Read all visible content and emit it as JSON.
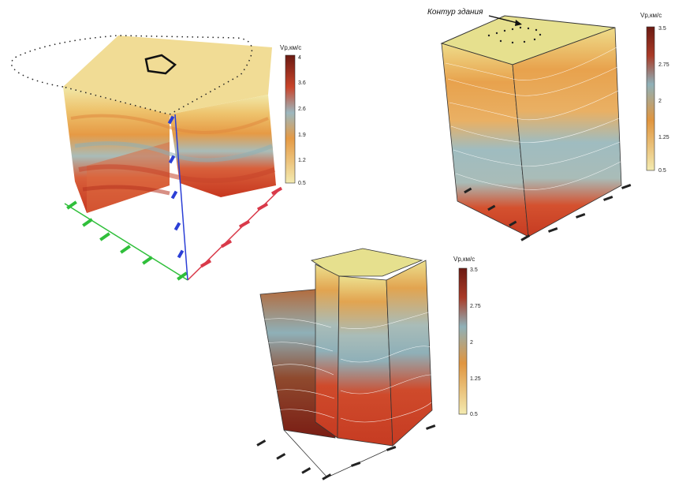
{
  "figure": {
    "panels": [
      {
        "id": "A",
        "colorbar": {
          "title": "Vp,км/с",
          "ticks": [
            "4",
            "3.6",
            "2.6",
            "1.9",
            "1.2",
            "0.5"
          ]
        }
      },
      {
        "id": "B",
        "annotation": "Контур здания",
        "colorbar": {
          "title": "Vp,км/с",
          "ticks": [
            "3.5",
            "2.75",
            "2",
            "1.25",
            "0.5"
          ]
        }
      },
      {
        "id": "C",
        "colorbar": {
          "title": "Vp,км/с",
          "ticks": [
            "3.5",
            "2.75",
            "2",
            "1.25",
            "0.5"
          ]
        }
      }
    ],
    "colors": {
      "low": "#eee3a0",
      "mid_low": "#e5a24a",
      "mid": "#9cb8bf",
      "high": "#d0452a",
      "very_high": "#7a1d14",
      "axis_x": "#2fbf3a",
      "axis_y": "#d93a4a",
      "axis_z": "#2b3fd6"
    }
  }
}
